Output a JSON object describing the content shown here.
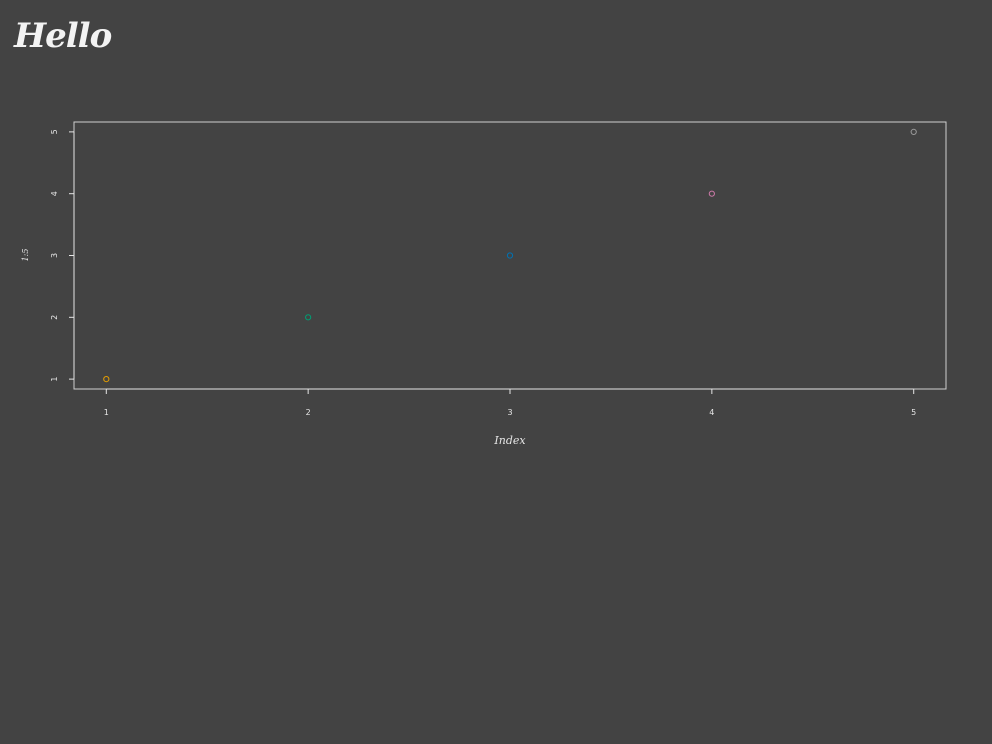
{
  "page": {
    "title": "Hello"
  },
  "chart_data": {
    "type": "scatter",
    "x": [
      1,
      2,
      3,
      4,
      5
    ],
    "y": [
      1,
      2,
      3,
      4,
      5
    ],
    "point_colors": [
      "#E69F00",
      "#009E73",
      "#0072B2",
      "#CC79A7",
      "#999999"
    ],
    "xlabel": "Index",
    "ylabel": "1:5",
    "xlim": [
      0.84,
      5.16
    ],
    "ylim": [
      0.84,
      5.16
    ],
    "xticks": [
      1,
      2,
      3,
      4,
      5
    ],
    "yticks": [
      1,
      2,
      3,
      4,
      5
    ],
    "grid": false,
    "legend": "none",
    "background": "#434343",
    "foreground": "#e6e6e6"
  }
}
